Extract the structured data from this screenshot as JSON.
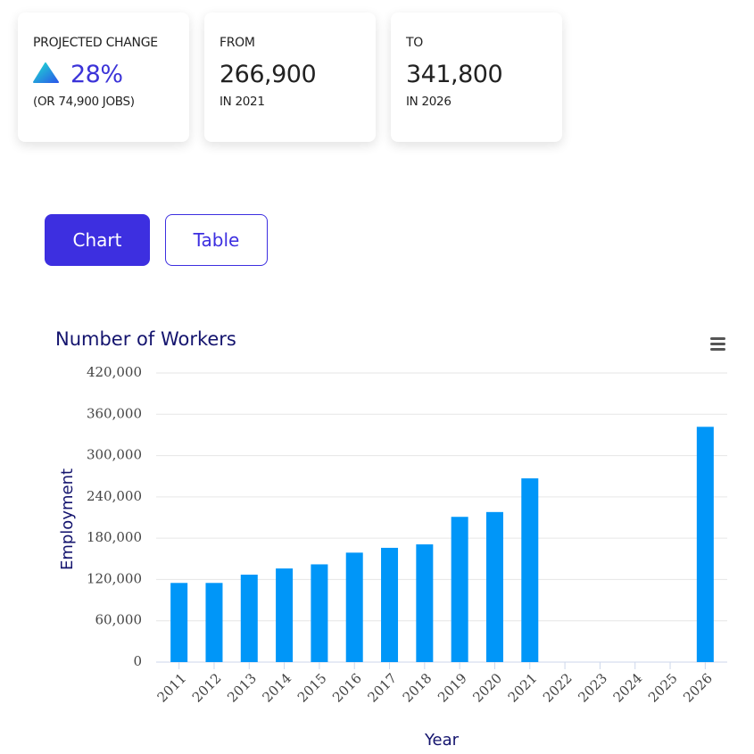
{
  "cards": [
    {
      "label": "PROJECTED CHANGE",
      "value": "28%",
      "sub": "(OR 74,900 JOBS)"
    },
    {
      "label": "FROM",
      "value": "266,900",
      "sub": "IN 2021"
    },
    {
      "label": "TO",
      "value": "341,800",
      "sub": "IN 2026"
    }
  ],
  "buttons": [
    "Chart",
    "Table"
  ],
  "chart_data": {
    "type": "bar",
    "title": "Number of Workers",
    "x_label": "Year",
    "y_label": "Employment",
    "categories": [
      "2011",
      "2012",
      "2013",
      "2014",
      "2015",
      "2016",
      "2017",
      "2018",
      "2019",
      "2020",
      "2021",
      "2022",
      "2023",
      "2024",
      "2025",
      "2026"
    ],
    "values": [
      115000,
      115000,
      127000,
      136000,
      142000,
      159000,
      166000,
      171000,
      211000,
      218000,
      266900,
      null,
      null,
      null,
      null,
      341800
    ],
    "color": "#0096f8",
    "ylim": [
      0,
      420000
    ],
    "yticks": [
      0,
      {
        "value": 60000,
        "label": "60,000"
      },
      {
        "value": 120000,
        "label": "120,000"
      },
      {
        "value": 180000,
        "label": "180,000"
      },
      {
        "value": 240000,
        "label": "240,000"
      },
      {
        "value": 300000,
        "label": "300,000"
      },
      {
        "value": 360000,
        "label": "360,000"
      },
      {
        "value": 420000,
        "label": "420,000"
      }
    ],
    "grid": true
  }
}
